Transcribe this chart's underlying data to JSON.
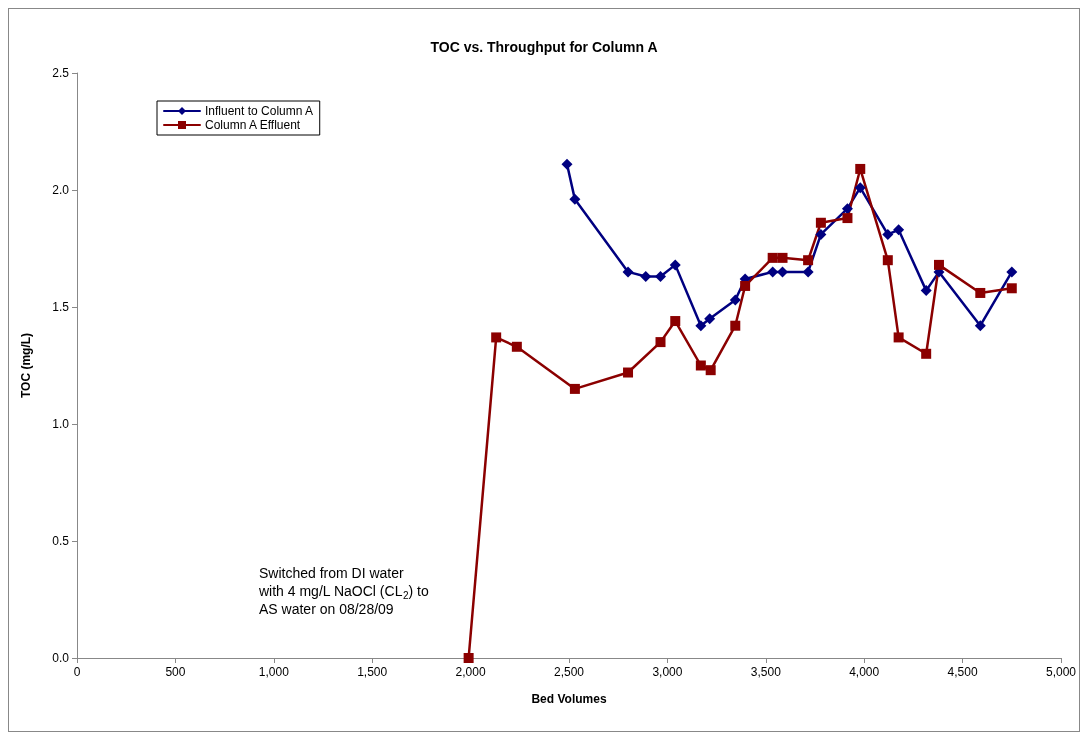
{
  "chart_data": {
    "type": "line",
    "title": "TOC vs. Throughput for Column A",
    "xlabel": "Bed Volumes",
    "ylabel": "TOC (mg/L)",
    "xlim": [
      0,
      5000
    ],
    "xticks": [
      0,
      500,
      {
        "value": 1000,
        "label": "1,000"
      },
      {
        "value": 1500,
        "label": "1,500"
      },
      {
        "value": 2000,
        "label": "2,000"
      },
      {
        "value": 2500,
        "label": "2,500"
      },
      {
        "value": 3000,
        "label": "3,000"
      },
      {
        "value": 3500,
        "label": "3,500"
      },
      {
        "value": 4000,
        "label": "4,000"
      },
      {
        "value": 4500,
        "label": "4,500"
      },
      {
        "value": 5000,
        "label": "5,000"
      }
    ],
    "ylim": [
      0,
      2.5
    ],
    "yticks": [
      {
        "value": 0,
        "label": "0.0"
      },
      0.5,
      {
        "value": 1,
        "label": "1.0"
      },
      1.5,
      {
        "value": 2,
        "label": "2.0"
      },
      2.5
    ],
    "grid": false,
    "legend": "top left",
    "line_style": "solid",
    "series": [
      {
        "name": "Influent to Column A",
        "color": "#000080",
        "marker": "diamond",
        "x": [
          2490,
          2530,
          2800,
          2890,
          2965,
          3040,
          3170,
          3215,
          3345,
          3395,
          3535,
          3585,
          3715,
          3780,
          3915,
          3980,
          4120,
          4175,
          4315,
          4380,
          4590,
          4750
        ],
        "values": [
          2.11,
          1.96,
          1.65,
          1.63,
          1.63,
          1.68,
          1.42,
          1.45,
          1.53,
          1.62,
          1.65,
          1.65,
          1.65,
          1.81,
          1.92,
          2.01,
          1.81,
          1.83,
          1.57,
          1.65,
          1.42,
          1.65
        ]
      },
      {
        "name": "Column A Effluent",
        "color": "#8b0000",
        "marker": "square",
        "x": [
          1990,
          2130,
          2235,
          2530,
          2800,
          2965,
          3040,
          3170,
          3220,
          3345,
          3395,
          3535,
          3585,
          3715,
          3780,
          3915,
          3980,
          4120,
          4175,
          4315,
          4380,
          4590,
          4750
        ],
        "values": [
          0,
          1.37,
          1.33,
          1.15,
          1.22,
          1.35,
          1.44,
          1.25,
          1.23,
          1.42,
          1.59,
          1.71,
          1.71,
          1.7,
          1.86,
          1.88,
          2.09,
          1.7,
          1.37,
          1.3,
          1.68,
          1.56,
          1.58
        ]
      }
    ],
    "annotations": [
      "Switched from DI water\nwith 4 mg/L NaOCl (CL$_{2}$) to\nAS water on 08/28/09"
    ]
  }
}
